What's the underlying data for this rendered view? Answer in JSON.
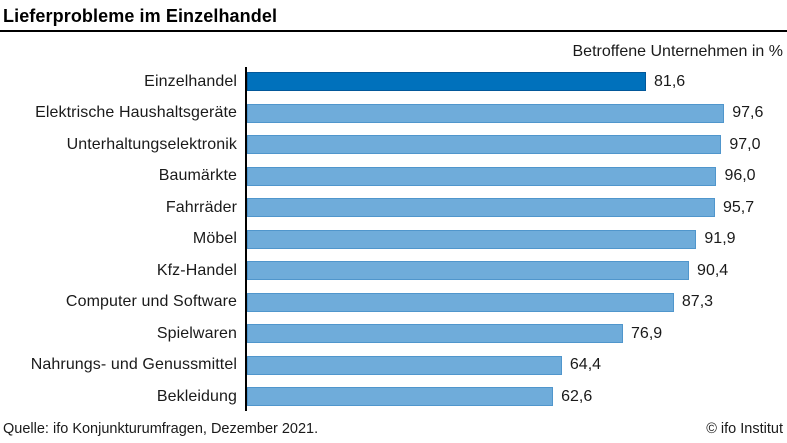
{
  "header": {
    "title": "Lieferprobleme im Einzelhandel"
  },
  "subtitle": "Betroffene Unternehmen in %",
  "chart_data": {
    "type": "bar",
    "orientation": "horizontal",
    "title": "Lieferprobleme im Einzelhandel",
    "subtitle": "Betroffene Unternehmen in %",
    "categories": [
      "Einzelhandel",
      "Elektrische Haushaltsgeräte",
      "Unterhaltungselektronik",
      "Baumärkte",
      "Fahrräder",
      "Möbel",
      "Kfz-Handel",
      "Computer und Software",
      "Spielwaren",
      "Nahrungs- und Genussmittel",
      "Bekleidung"
    ],
    "values": [
      81.6,
      97.6,
      97.0,
      96.0,
      95.7,
      91.9,
      90.4,
      87.3,
      76.9,
      64.4,
      62.6
    ],
    "value_labels": [
      "81,6",
      "97,6",
      "97,0",
      "96,0",
      "95,7",
      "91,9",
      "90,4",
      "87,3",
      "76,9",
      "64,4",
      "62,6"
    ],
    "xlim": [
      0,
      100
    ],
    "grid": false,
    "legend": false,
    "highlight_index": 0,
    "colors": {
      "highlight_bar": "#0071BC",
      "highlight_border": "#02589A",
      "bar": "#6FACDA",
      "bar_border": "#5096CC"
    }
  },
  "footer": {
    "source": "Quelle: ifo Konjunkturumfragen, Dezember 2021.",
    "copyright": "© ifo Institut"
  }
}
